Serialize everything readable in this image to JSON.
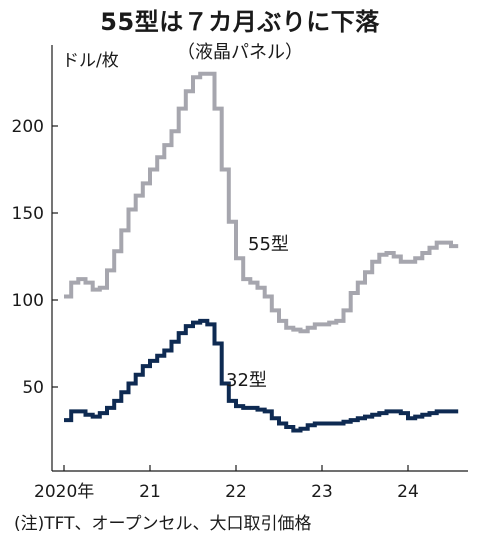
{
  "chart_data": {
    "type": "line",
    "title": "55型は７カ月ぶりに下落",
    "subtitle": "（液晶パネル）",
    "ylabel": "ドル/枚",
    "note": "(注)TFT、オープンセル、大口取引価格",
    "ylim": [
      0,
      240
    ],
    "yticks": [
      50,
      100,
      150,
      200
    ],
    "xlim": [
      2019.9,
      2024.7
    ],
    "xticks": [
      {
        "value": 2020,
        "label": "2020年"
      },
      {
        "value": 2021,
        "label": "21"
      },
      {
        "value": 2022,
        "label": "22"
      },
      {
        "value": 2023,
        "label": "23"
      },
      {
        "value": 2024,
        "label": "24"
      }
    ],
    "step": "monthly",
    "grid": false,
    "x": [
      "2020-01",
      "2020-02",
      "2020-03",
      "2020-04",
      "2020-05",
      "2020-06",
      "2020-07",
      "2020-08",
      "2020-09",
      "2020-10",
      "2020-11",
      "2020-12",
      "2021-01",
      "2021-02",
      "2021-03",
      "2021-04",
      "2021-05",
      "2021-06",
      "2021-07",
      "2021-08",
      "2021-09",
      "2021-10",
      "2021-11",
      "2021-12",
      "2022-01",
      "2022-02",
      "2022-03",
      "2022-04",
      "2022-05",
      "2022-06",
      "2022-07",
      "2022-08",
      "2022-09",
      "2022-10",
      "2022-11",
      "2022-12",
      "2023-01",
      "2023-02",
      "2023-03",
      "2023-04",
      "2023-05",
      "2023-06",
      "2023-07",
      "2023-08",
      "2023-09",
      "2023-10",
      "2023-11",
      "2023-12",
      "2024-01",
      "2024-02",
      "2024-03",
      "2024-04",
      "2024-05",
      "2024-06",
      "2024-07"
    ],
    "series": [
      {
        "name": "55型",
        "color": "#a6a6ae",
        "values": [
          102,
          110,
          112,
          110,
          106,
          107,
          117,
          128,
          140,
          152,
          160,
          167,
          175,
          182,
          189,
          197,
          210,
          220,
          228,
          230,
          230,
          210,
          175,
          145,
          124,
          112,
          110,
          107,
          102,
          94,
          88,
          84,
          83,
          82,
          84,
          86,
          86,
          87,
          88,
          94,
          104,
          110,
          116,
          122,
          126,
          127,
          125,
          122,
          122,
          124,
          127,
          130,
          133,
          133,
          131
        ]
      },
      {
        "name": "32型",
        "color": "#0e2a52",
        "values": [
          31,
          36,
          36,
          34,
          33,
          35,
          38,
          42,
          47,
          52,
          57,
          62,
          65,
          68,
          71,
          76,
          81,
          85,
          87,
          88,
          86,
          75,
          52,
          42,
          39,
          38,
          38,
          37,
          36,
          32,
          29,
          27,
          25,
          26,
          28,
          29,
          29,
          29,
          29,
          30,
          31,
          32,
          33,
          34,
          35,
          36,
          36,
          35,
          32,
          33,
          34,
          35,
          36,
          36,
          36
        ]
      }
    ]
  }
}
